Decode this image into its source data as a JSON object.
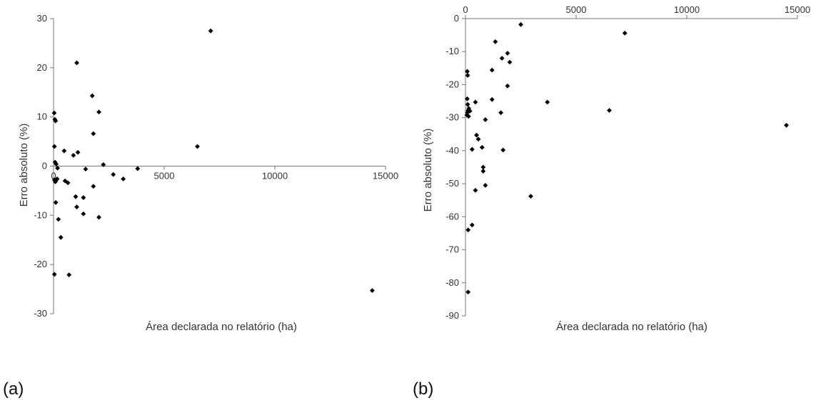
{
  "chart_data": [
    {
      "type": "scatter",
      "panel_label": "(a)",
      "xlabel": "Área declarada no relatório (ha)",
      "ylabel": "Erro absoluto  (%)",
      "xlim": [
        0,
        15000
      ],
      "ylim": [
        -30,
        30
      ],
      "xticks": [
        0,
        5000,
        10000,
        15000
      ],
      "yticks": [
        30,
        20,
        10,
        0,
        -10,
        -20,
        -30
      ],
      "grid": false,
      "marker_color": "#000000",
      "points": [
        [
          30,
          10.8
        ],
        [
          60,
          9.5
        ],
        [
          90,
          9.2
        ],
        [
          40,
          4.0
        ],
        [
          70,
          0.8
        ],
        [
          120,
          0.4
        ],
        [
          180,
          -0.4
        ],
        [
          40,
          -2.8
        ],
        [
          80,
          -3.2
        ],
        [
          110,
          -2.9
        ],
        [
          160,
          -2.6
        ],
        [
          100,
          -7.4
        ],
        [
          220,
          -10.8
        ],
        [
          330,
          -14.5
        ],
        [
          40,
          -22.0
        ],
        [
          700,
          -22.1
        ],
        [
          480,
          3.1
        ],
        [
          900,
          2.2
        ],
        [
          1100,
          2.8
        ],
        [
          520,
          -3.0
        ],
        [
          650,
          -3.4
        ],
        [
          1000,
          -6.2
        ],
        [
          1050,
          -8.3
        ],
        [
          1350,
          -6.4
        ],
        [
          1350,
          -9.7
        ],
        [
          1450,
          -0.6
        ],
        [
          1050,
          21.0
        ],
        [
          1750,
          14.3
        ],
        [
          1800,
          6.6
        ],
        [
          2050,
          11.0
        ],
        [
          1800,
          -4.1
        ],
        [
          2050,
          -10.4
        ],
        [
          2250,
          0.3
        ],
        [
          2700,
          -1.7
        ],
        [
          3150,
          -2.6
        ],
        [
          3800,
          -0.5
        ],
        [
          6500,
          4.0
        ],
        [
          7100,
          27.5
        ],
        [
          14400,
          -25.3
        ]
      ]
    },
    {
      "type": "scatter",
      "panel_label": "(b)",
      "xlabel": "Área declarada no relatório (ha)",
      "ylabel": "Erro absoluto (%)",
      "xlim": [
        0,
        15000
      ],
      "ylim": [
        -90,
        0
      ],
      "xticks": [
        0,
        5000,
        10000,
        15000
      ],
      "yticks": [
        0,
        -10,
        -20,
        -30,
        -40,
        -50,
        -60,
        -70,
        -80,
        -90
      ],
      "x_axis_position": "top",
      "grid": false,
      "marker_color": "#000000",
      "points": [
        [
          80,
          -16.0
        ],
        [
          100,
          -17.2
        ],
        [
          80,
          -24.3
        ],
        [
          100,
          -26.0
        ],
        [
          150,
          -27.2
        ],
        [
          120,
          -27.8
        ],
        [
          90,
          -28.4
        ],
        [
          60,
          -29.2
        ],
        [
          200,
          -28.0
        ],
        [
          140,
          -29.6
        ],
        [
          450,
          -25.3
        ],
        [
          300,
          -39.6
        ],
        [
          500,
          -35.3
        ],
        [
          580,
          -36.5
        ],
        [
          120,
          -64.0
        ],
        [
          300,
          -62.5
        ],
        [
          120,
          -82.8
        ],
        [
          450,
          -52.0
        ],
        [
          750,
          -39.0
        ],
        [
          800,
          -45.0
        ],
        [
          800,
          -46.2
        ],
        [
          900,
          -50.5
        ],
        [
          900,
          -30.6
        ],
        [
          1200,
          -15.6
        ],
        [
          1350,
          -7.0
        ],
        [
          1650,
          -12.0
        ],
        [
          1900,
          -10.5
        ],
        [
          2000,
          -13.2
        ],
        [
          1900,
          -20.4
        ],
        [
          1200,
          -24.5
        ],
        [
          1600,
          -28.5
        ],
        [
          1700,
          -39.8
        ],
        [
          2500,
          -1.8
        ],
        [
          2950,
          -53.8
        ],
        [
          3700,
          -25.3
        ],
        [
          6500,
          -27.8
        ],
        [
          7200,
          -4.4
        ],
        [
          14500,
          -32.3
        ]
      ]
    }
  ]
}
